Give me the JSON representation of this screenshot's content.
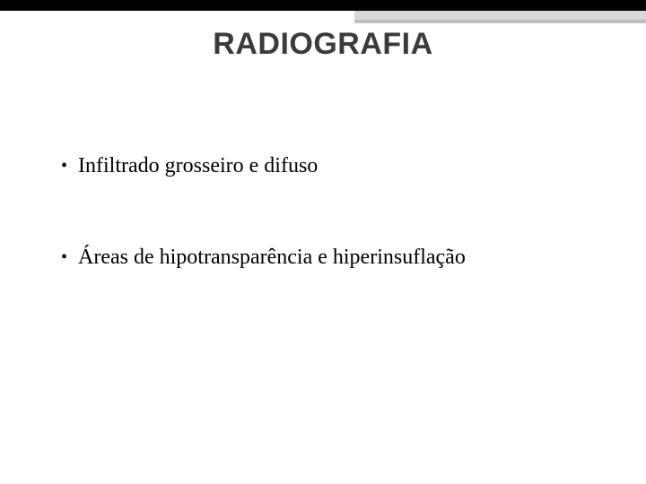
{
  "slide": {
    "title": "RADIOGRAFIA",
    "bullets": [
      {
        "text": "Infiltrado grosseiro e difuso"
      },
      {
        "text": "Áreas de hipotransparência e hiperinsuflação"
      }
    ]
  },
  "style": {
    "title_color": "#3b3b3b",
    "title_fontsize": 34,
    "bullet_fontsize": 24,
    "bullet_color": "#000000",
    "topbar_color": "#000000",
    "accent1_color": "#d9d9d9",
    "accent2_color": "#bfbfbf",
    "background_color": "#ffffff"
  }
}
